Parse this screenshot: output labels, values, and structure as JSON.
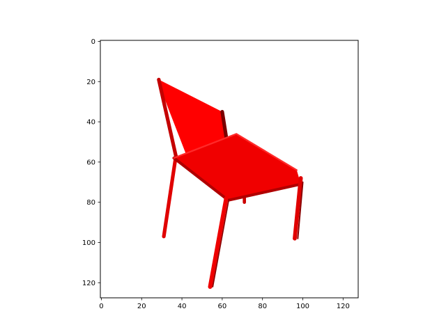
{
  "figure": {
    "frame_color": "#000000",
    "object_color": "#ff0000",
    "object_shadow_color": "#8b0000",
    "image_extent": {
      "x": [
        -0.5,
        127.5
      ],
      "y": [
        -0.5,
        127.5
      ]
    }
  },
  "x_ticks": [
    0,
    20,
    40,
    60,
    80,
    100,
    120
  ],
  "y_ticks": [
    0,
    20,
    40,
    60,
    80,
    100,
    120
  ]
}
